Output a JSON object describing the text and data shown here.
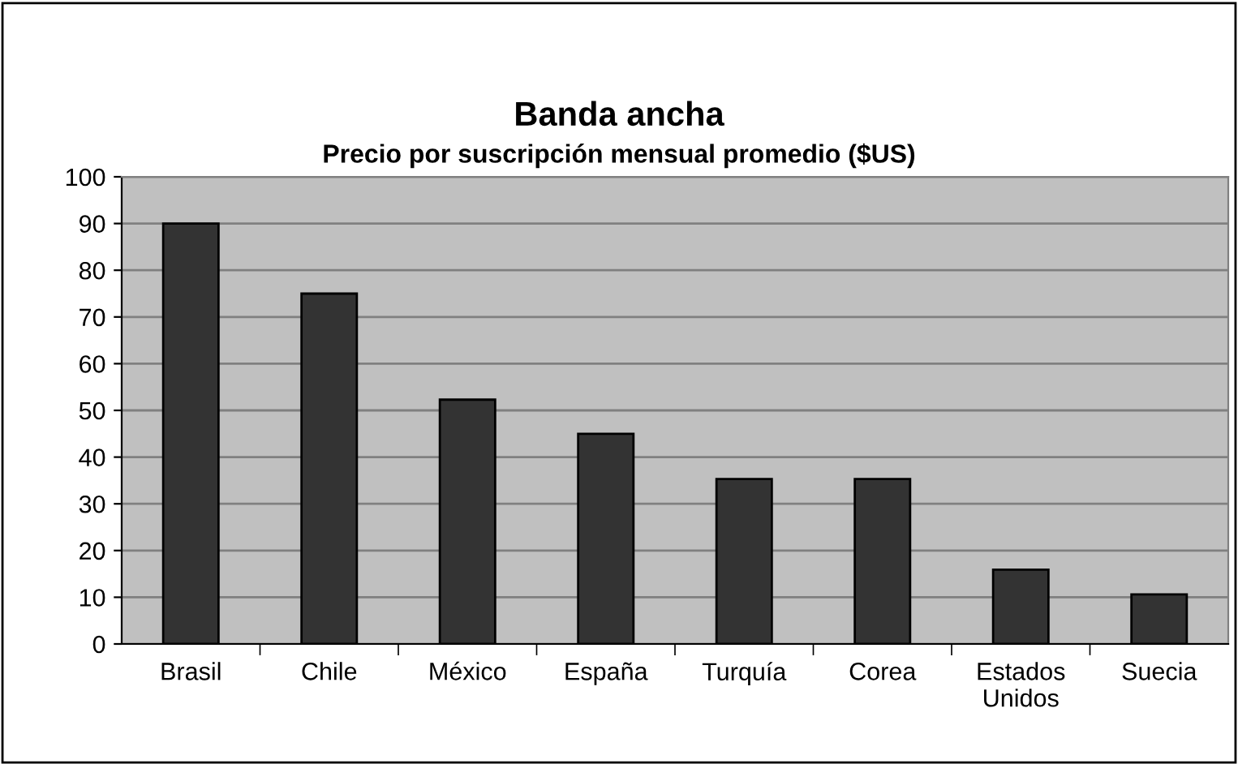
{
  "chart_data": {
    "type": "bar",
    "title": "Banda ancha",
    "subtitle": "Precio por suscripción mensual promedio ($US)",
    "categories": [
      "Brasil",
      "Chile",
      "México",
      "España",
      "Turquía",
      "Corea",
      "Estados\nUnidos",
      "Suecia"
    ],
    "values": [
      90,
      75,
      52.3,
      45,
      35.3,
      35.3,
      15.9,
      10.6
    ],
    "color": "#333333",
    "ylim": [
      0,
      100
    ],
    "yticks": [
      0,
      10,
      20,
      30,
      40,
      50,
      60,
      70,
      80,
      90,
      100
    ],
    "grid": "y"
  }
}
